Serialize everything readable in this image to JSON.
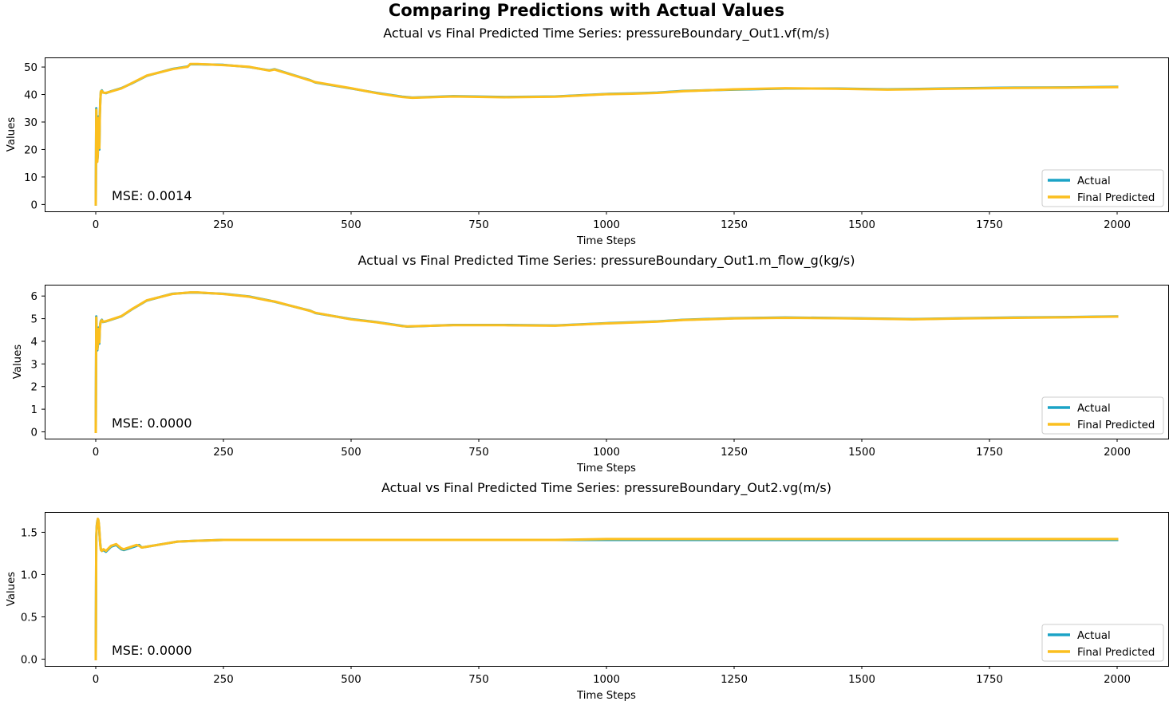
{
  "figure": {
    "title": "Comparing Predictions with Actual Values"
  },
  "colors": {
    "actual": "#1ba3c6",
    "predicted": "#fbbf1f"
  },
  "chart_data": [
    {
      "type": "line",
      "title": "Actual vs Final Predicted Time Series: pressureBoundary_Out1.vf(m/s)",
      "xlabel": "Time Steps",
      "ylabel": "Values",
      "xlim": [
        -100,
        2100
      ],
      "ylim": [
        -2.5,
        53.5
      ],
      "xticks": [
        0,
        250,
        500,
        750,
        1000,
        1250,
        1500,
        1750,
        2000
      ],
      "xtick_labels": [
        "0",
        "250",
        "500",
        "750",
        "1000",
        "1250",
        "1500",
        "1750",
        "2000"
      ],
      "yticks": [
        0,
        10,
        20,
        30,
        40,
        50
      ],
      "ytick_labels": [
        "0",
        "10",
        "20",
        "30",
        "40",
        "50"
      ],
      "annotation": "MSE: 0.0014",
      "legend": {
        "position": "lower right",
        "entries": [
          "Actual",
          "Final Predicted"
        ]
      },
      "series": [
        {
          "name": "Actual",
          "x": [
            0,
            1,
            2,
            3,
            4,
            5,
            6,
            7,
            8,
            9,
            10,
            12,
            14,
            20,
            30,
            50,
            70,
            100,
            150,
            180,
            185,
            200,
            250,
            300,
            340,
            350,
            420,
            430,
            500,
            550,
            600,
            620,
            700,
            800,
            900,
            1000,
            1050,
            1100,
            1150,
            1250,
            1350,
            1450,
            1550,
            1600,
            1700,
            1800,
            1900,
            2000
          ],
          "y": [
            0,
            35,
            24,
            16,
            18,
            32,
            26,
            20,
            33,
            38,
            41,
            41.5,
            40.8,
            40.5,
            41.2,
            42.3,
            44,
            46.8,
            49.3,
            50.2,
            51,
            51,
            50.8,
            50,
            48.8,
            49.2,
            45.2,
            44.4,
            42.2,
            40.6,
            39.2,
            38.9,
            39.4,
            39.1,
            39.3,
            40.2,
            40.4,
            40.7,
            41.3,
            41.8,
            42.2,
            42.2,
            41.9,
            42,
            42.3,
            42.5,
            42.6,
            42.8
          ]
        },
        {
          "name": "Final Predicted",
          "x": [
            0,
            1,
            2,
            3,
            4,
            5,
            6,
            7,
            8,
            9,
            10,
            12,
            14,
            20,
            30,
            50,
            70,
            100,
            150,
            180,
            185,
            200,
            250,
            300,
            340,
            350,
            420,
            430,
            500,
            550,
            600,
            620,
            700,
            800,
            900,
            1000,
            1050,
            1100,
            1150,
            1250,
            1350,
            1450,
            1550,
            1600,
            1700,
            1800,
            1900,
            2000
          ],
          "y": [
            0,
            34.5,
            23.5,
            15.5,
            18.5,
            31.5,
            25.5,
            20.5,
            32.5,
            38,
            41.2,
            41.3,
            40.7,
            40.6,
            41.1,
            42.2,
            44.1,
            46.9,
            49.2,
            50.1,
            51.1,
            51.1,
            50.7,
            50.1,
            48.7,
            49.1,
            45.1,
            44.5,
            42.3,
            40.5,
            39.1,
            38.8,
            39.3,
            39.0,
            39.2,
            40.1,
            40.3,
            40.6,
            41.2,
            41.9,
            42.3,
            42.1,
            41.8,
            41.9,
            42.2,
            42.4,
            42.5,
            42.7
          ]
        }
      ]
    },
    {
      "type": "line",
      "title": "Actual vs Final Predicted Time Series: pressureBoundary_Out1.m_flow_g(kg/s)",
      "xlabel": "Time Steps",
      "ylabel": "Values",
      "xlim": [
        -100,
        2100
      ],
      "ylim": [
        -0.3,
        6.5
      ],
      "xticks": [
        0,
        250,
        500,
        750,
        1000,
        1250,
        1500,
        1750,
        2000
      ],
      "xtick_labels": [
        "0",
        "250",
        "500",
        "750",
        "1000",
        "1250",
        "1500",
        "1750",
        "2000"
      ],
      "yticks": [
        0,
        1,
        2,
        3,
        4,
        5,
        6
      ],
      "ytick_labels": [
        "0",
        "1",
        "2",
        "3",
        "4",
        "5",
        "6"
      ],
      "annotation": "MSE: 0.0000",
      "legend": {
        "position": "lower right",
        "entries": [
          "Actual",
          "Final Predicted"
        ]
      },
      "series": [
        {
          "name": "Actual",
          "x": [
            0,
            1,
            2,
            3,
            4,
            5,
            6,
            7,
            8,
            9,
            10,
            12,
            14,
            20,
            30,
            50,
            70,
            100,
            150,
            185,
            200,
            250,
            300,
            340,
            350,
            420,
            430,
            500,
            550,
            600,
            610,
            700,
            800,
            900,
            1000,
            1100,
            1150,
            1250,
            1350,
            1450,
            1550,
            1600,
            1700,
            1800,
            1900,
            2000
          ],
          "y": [
            0,
            5.1,
            4.2,
            3.6,
            3.8,
            4.6,
            4.2,
            3.9,
            4.6,
            4.8,
            4.9,
            4.95,
            4.85,
            4.88,
            4.95,
            5.1,
            5.4,
            5.8,
            6.1,
            6.15,
            6.15,
            6.1,
            5.98,
            5.8,
            5.75,
            5.35,
            5.25,
            4.98,
            4.85,
            4.68,
            4.65,
            4.72,
            4.72,
            4.7,
            4.8,
            4.88,
            4.95,
            5.02,
            5.05,
            5.03,
            5.0,
            4.98,
            5.02,
            5.05,
            5.07,
            5.1
          ]
        },
        {
          "name": "Final Predicted",
          "x": [
            0,
            1,
            2,
            3,
            4,
            5,
            6,
            7,
            8,
            9,
            10,
            12,
            14,
            20,
            30,
            50,
            70,
            100,
            150,
            185,
            200,
            250,
            300,
            340,
            350,
            420,
            430,
            500,
            550,
            600,
            610,
            700,
            800,
            900,
            1000,
            1100,
            1150,
            1250,
            1350,
            1450,
            1550,
            1600,
            1700,
            1800,
            1900,
            2000
          ],
          "y": [
            0,
            5.05,
            4.15,
            3.65,
            3.85,
            4.55,
            4.25,
            3.95,
            4.55,
            4.78,
            4.88,
            4.93,
            4.86,
            4.89,
            4.96,
            5.11,
            5.41,
            5.81,
            6.09,
            6.16,
            6.16,
            6.09,
            5.97,
            5.79,
            5.76,
            5.34,
            5.26,
            4.97,
            4.84,
            4.67,
            4.66,
            4.71,
            4.71,
            4.69,
            4.79,
            4.87,
            4.94,
            5.01,
            5.04,
            5.02,
            4.99,
            4.97,
            5.01,
            5.04,
            5.06,
            5.09
          ]
        }
      ]
    },
    {
      "type": "line",
      "title": "Actual vs Final Predicted Time Series: pressureBoundary_Out2.vg(m/s)",
      "xlabel": "Time Steps",
      "ylabel": "Values",
      "xlim": [
        -100,
        2100
      ],
      "ylim": [
        -0.08,
        1.74
      ],
      "xticks": [
        0,
        250,
        500,
        750,
        1000,
        1250,
        1500,
        1750,
        2000
      ],
      "xtick_labels": [
        "0",
        "250",
        "500",
        "750",
        "1000",
        "1250",
        "1500",
        "1750",
        "2000"
      ],
      "yticks": [
        0,
        0.5,
        1.0,
        1.5
      ],
      "ytick_labels": [
        "0.0",
        "0.5",
        "1.0",
        "1.5"
      ],
      "annotation": "MSE: 0.0000",
      "legend": {
        "position": "lower right",
        "entries": [
          "Actual",
          "Final Predicted"
        ]
      },
      "series": [
        {
          "name": "Actual",
          "x": [
            0,
            1,
            2,
            3,
            4,
            5,
            6,
            7,
            8,
            9,
            10,
            12,
            15,
            20,
            25,
            30,
            40,
            50,
            55,
            60,
            70,
            80,
            85,
            90,
            100,
            130,
            160,
            200,
            250,
            300,
            400,
            500,
            600,
            700,
            800,
            900,
            1000,
            1200,
            1400,
            1600,
            1800,
            2000
          ],
          "y": [
            0,
            1.45,
            1.58,
            1.63,
            1.65,
            1.64,
            1.6,
            1.52,
            1.42,
            1.35,
            1.3,
            1.28,
            1.29,
            1.27,
            1.3,
            1.33,
            1.35,
            1.3,
            1.29,
            1.3,
            1.32,
            1.34,
            1.35,
            1.32,
            1.33,
            1.36,
            1.39,
            1.4,
            1.41,
            1.41,
            1.41,
            1.41,
            1.41,
            1.41,
            1.41,
            1.41,
            1.41,
            1.41,
            1.41,
            1.41,
            1.41,
            1.41
          ]
        },
        {
          "name": "Final Predicted",
          "x": [
            0,
            1,
            2,
            3,
            4,
            5,
            6,
            7,
            8,
            9,
            10,
            12,
            15,
            20,
            25,
            30,
            40,
            50,
            55,
            60,
            70,
            80,
            85,
            90,
            100,
            130,
            160,
            200,
            250,
            300,
            400,
            500,
            600,
            700,
            800,
            900,
            1000,
            1200,
            1400,
            1600,
            1800,
            2000
          ],
          "y": [
            0,
            1.44,
            1.57,
            1.62,
            1.66,
            1.65,
            1.61,
            1.53,
            1.43,
            1.34,
            1.29,
            1.28,
            1.3,
            1.28,
            1.31,
            1.34,
            1.36,
            1.31,
            1.3,
            1.31,
            1.33,
            1.35,
            1.34,
            1.32,
            1.33,
            1.36,
            1.39,
            1.4,
            1.41,
            1.41,
            1.41,
            1.41,
            1.41,
            1.41,
            1.41,
            1.41,
            1.42,
            1.42,
            1.42,
            1.42,
            1.42,
            1.42
          ]
        }
      ]
    }
  ]
}
